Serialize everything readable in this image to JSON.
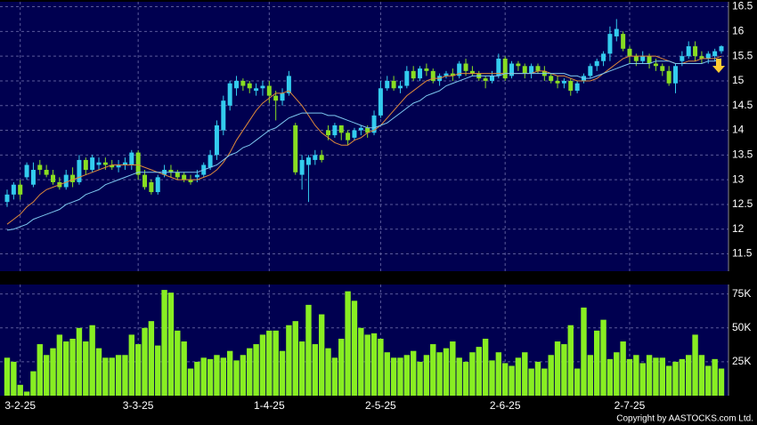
{
  "chart_data": [
    {
      "type": "candlestick",
      "categories": [
        null,
        null,
        "3-2-25",
        null,
        null,
        null,
        null,
        null,
        null,
        null,
        null,
        null,
        null,
        null,
        null,
        null,
        null,
        null,
        null,
        null,
        "3-3-25",
        null,
        null,
        null,
        null,
        null,
        null,
        null,
        null,
        null,
        null,
        null,
        null,
        null,
        null,
        null,
        null,
        null,
        null,
        null,
        "1-4-25",
        null,
        null,
        null,
        null,
        null,
        null,
        null,
        null,
        null,
        null,
        null,
        null,
        null,
        null,
        null,
        null,
        "2-5-25",
        null,
        null,
        null,
        null,
        null,
        null,
        null,
        null,
        null,
        null,
        null,
        null,
        null,
        null,
        null,
        null,
        null,
        null,
        "2-6-25",
        null,
        null,
        null,
        null,
        null,
        null,
        null,
        null,
        null,
        null,
        null,
        null,
        null,
        null,
        null,
        null,
        null,
        null,
        "2-7-25",
        null,
        null,
        null,
        null,
        null,
        null,
        null,
        null,
        null,
        null,
        null,
        null,
        null,
        null
      ],
      "open": [
        12.55,
        12.7,
        12.9,
        13.05,
        12.9,
        13.3,
        13.2,
        13.1,
        12.95,
        12.85,
        13.1,
        12.95,
        13.4,
        13.2,
        13.3,
        13.35,
        13.3,
        13.25,
        13.3,
        13.3,
        13.55,
        13.1,
        12.95,
        12.75,
        13.1,
        13.2,
        13.15,
        13.1,
        13.0,
        13.05,
        13.1,
        13.25,
        13.5,
        14.0,
        14.5,
        14.85,
        15.0,
        14.95,
        14.8,
        14.85,
        14.9,
        14.7,
        14.6,
        14.75,
        14.1,
        13.1,
        13.3,
        13.4,
        13.5,
        14.0,
        13.9,
        14.1,
        13.95,
        13.85,
        14.0,
        14.05,
        13.95,
        14.3,
        14.85,
        15.0,
        14.85,
        14.9,
        15.2,
        15.05,
        15.25,
        15.2,
        15.0,
        15.1,
        15.15,
        15.1,
        15.35,
        15.2,
        15.15,
        15.05,
        15.0,
        15.1,
        15.45,
        15.1,
        15.35,
        15.3,
        15.15,
        15.3,
        15.2,
        15.1,
        15.0,
        14.95,
        15.0,
        14.8,
        15.0,
        15.1,
        15.3,
        15.4,
        15.55,
        15.9,
        15.95,
        15.65,
        15.5,
        15.4,
        15.5,
        15.35,
        15.3,
        15.2,
        14.95,
        15.4,
        15.5,
        15.7,
        15.5,
        15.45,
        15.5,
        15.6
      ],
      "high": [
        12.8,
        12.95,
        13.0,
        13.35,
        13.35,
        13.4,
        13.3,
        13.2,
        13.05,
        13.2,
        13.25,
        13.5,
        13.45,
        13.5,
        13.45,
        13.45,
        13.4,
        13.4,
        13.45,
        13.6,
        13.6,
        13.2,
        13.0,
        13.1,
        13.3,
        13.3,
        13.2,
        13.15,
        13.1,
        13.2,
        13.35,
        13.6,
        14.2,
        14.7,
        15.0,
        15.1,
        15.05,
        15.0,
        14.95,
        15.0,
        15.0,
        14.8,
        14.85,
        15.2,
        14.15,
        13.5,
        13.5,
        13.6,
        13.6,
        14.1,
        14.15,
        14.1,
        14.0,
        14.05,
        14.1,
        14.1,
        14.4,
        15.0,
        15.1,
        15.1,
        15.0,
        15.3,
        15.3,
        15.3,
        15.35,
        15.25,
        15.15,
        15.2,
        15.25,
        15.4,
        15.45,
        15.3,
        15.2,
        15.1,
        15.2,
        15.55,
        15.5,
        15.4,
        15.4,
        15.35,
        15.35,
        15.35,
        15.3,
        15.15,
        15.1,
        15.05,
        15.05,
        15.0,
        15.15,
        15.35,
        15.45,
        15.6,
        16.1,
        16.25,
        16.0,
        15.7,
        15.55,
        15.6,
        15.55,
        15.45,
        15.35,
        15.3,
        15.35,
        15.6,
        15.8,
        15.8,
        15.6,
        15.6,
        15.65,
        15.72
      ],
      "low": [
        12.45,
        12.6,
        12.6,
        13.0,
        12.85,
        13.1,
        13.05,
        12.9,
        12.8,
        12.8,
        12.85,
        12.9,
        13.1,
        13.15,
        13.2,
        13.2,
        13.2,
        13.15,
        13.2,
        13.2,
        13.0,
        12.8,
        12.7,
        12.7,
        13.05,
        13.05,
        13.0,
        12.95,
        12.9,
        12.95,
        13.05,
        13.2,
        13.4,
        13.9,
        14.4,
        14.7,
        14.8,
        14.75,
        14.7,
        14.7,
        14.55,
        14.2,
        14.5,
        14.7,
        13.1,
        12.8,
        12.55,
        13.3,
        13.35,
        13.8,
        13.85,
        13.8,
        13.7,
        13.8,
        13.9,
        13.85,
        13.9,
        14.25,
        14.8,
        14.8,
        14.75,
        14.85,
        15.0,
        15.0,
        15.1,
        14.95,
        14.9,
        15.05,
        15.0,
        15.05,
        15.1,
        15.1,
        15.0,
        14.85,
        14.95,
        15.05,
        15.0,
        15.05,
        15.2,
        15.05,
        15.05,
        15.15,
        15.0,
        14.95,
        14.85,
        14.85,
        14.7,
        14.75,
        14.95,
        15.05,
        15.2,
        15.3,
        15.4,
        15.8,
        15.6,
        15.35,
        15.3,
        15.35,
        15.25,
        15.2,
        15.1,
        14.9,
        14.75,
        15.3,
        15.45,
        15.4,
        15.35,
        15.35,
        15.4,
        15.55
      ],
      "close": [
        12.7,
        12.9,
        12.7,
        13.3,
        13.2,
        13.2,
        13.1,
        12.95,
        12.85,
        13.1,
        12.95,
        13.4,
        13.2,
        13.45,
        13.35,
        13.3,
        13.25,
        13.3,
        13.35,
        13.55,
        13.1,
        12.85,
        12.75,
        13.05,
        13.2,
        13.15,
        13.05,
        13.0,
        12.95,
        13.1,
        13.3,
        13.5,
        14.1,
        14.6,
        14.95,
        15.0,
        14.9,
        14.85,
        14.85,
        14.9,
        14.7,
        14.6,
        14.75,
        15.1,
        13.15,
        13.4,
        13.45,
        13.5,
        13.4,
        13.9,
        14.1,
        13.95,
        13.8,
        14.0,
        14.05,
        13.95,
        14.3,
        14.85,
        15.0,
        14.85,
        14.9,
        15.2,
        15.05,
        15.25,
        15.2,
        15.0,
        15.1,
        15.15,
        15.1,
        15.35,
        15.2,
        15.15,
        15.05,
        15.0,
        15.1,
        15.45,
        15.05,
        15.35,
        15.3,
        15.15,
        15.3,
        15.2,
        15.1,
        15.0,
        14.95,
        15.0,
        14.8,
        14.95,
        15.1,
        15.3,
        15.4,
        15.55,
        15.95,
        16.05,
        15.65,
        15.5,
        15.4,
        15.5,
        15.35,
        15.3,
        15.2,
        14.95,
        15.3,
        15.5,
        15.7,
        15.5,
        15.45,
        15.55,
        15.6,
        15.7
      ],
      "up_color": "#33ccee",
      "down_color": "#88dd22",
      "series": [
        {
          "color": "#e08a3a",
          "values": [
            12.1,
            12.2,
            12.3,
            12.45,
            12.55,
            12.7,
            12.8,
            12.85,
            12.9,
            12.95,
            13.0,
            13.05,
            13.1,
            13.15,
            13.2,
            13.25,
            13.3,
            13.3,
            13.3,
            13.3,
            13.3,
            13.25,
            13.2,
            13.15,
            13.1,
            13.05,
            13.0,
            13.0,
            13.0,
            13.0,
            13.05,
            13.1,
            13.2,
            13.35,
            13.55,
            13.8,
            14.0,
            14.2,
            14.4,
            14.55,
            14.65,
            14.75,
            14.75,
            14.8,
            14.65,
            14.5,
            14.3,
            14.1,
            13.95,
            13.85,
            13.75,
            13.7,
            13.7,
            13.8,
            13.85,
            13.95,
            14.0,
            14.1,
            14.25,
            14.4,
            14.55,
            14.7,
            14.8,
            14.9,
            15.0,
            15.05,
            15.05,
            15.1,
            15.1,
            15.15,
            15.15,
            15.15,
            15.15,
            15.15,
            15.15,
            15.15,
            15.15,
            15.15,
            15.15,
            15.15,
            15.15,
            15.2,
            15.2,
            15.15,
            15.1,
            15.1,
            15.05,
            15.0,
            15.0,
            15.0,
            15.05,
            15.15,
            15.25,
            15.35,
            15.45,
            15.5,
            15.5,
            15.5,
            15.5,
            15.5,
            15.45,
            15.4,
            15.35,
            15.35,
            15.4,
            15.4,
            15.45,
            15.45,
            15.45,
            15.5
          ]
        },
        {
          "color": "#7ec8f0",
          "values": [
            11.98,
            12.0,
            12.05,
            12.1,
            12.2,
            12.25,
            12.3,
            12.35,
            12.4,
            12.5,
            12.55,
            12.6,
            12.7,
            12.75,
            12.8,
            12.9,
            12.95,
            13.0,
            13.05,
            13.1,
            13.15,
            13.15,
            13.15,
            13.15,
            13.15,
            13.15,
            13.15,
            13.15,
            13.15,
            13.15,
            13.2,
            13.25,
            13.3,
            13.4,
            13.5,
            13.55,
            13.65,
            13.7,
            13.8,
            13.9,
            14.0,
            14.05,
            14.15,
            14.25,
            14.3,
            14.35,
            14.35,
            14.35,
            14.35,
            14.3,
            14.3,
            14.25,
            14.2,
            14.15,
            14.1,
            14.05,
            14.05,
            14.1,
            14.15,
            14.25,
            14.35,
            14.45,
            14.55,
            14.6,
            14.7,
            14.75,
            14.8,
            14.9,
            14.95,
            15.0,
            15.05,
            15.1,
            15.1,
            15.1,
            15.1,
            15.1,
            15.15,
            15.15,
            15.15,
            15.15,
            15.15,
            15.15,
            15.15,
            15.15,
            15.15,
            15.15,
            15.1,
            15.1,
            15.05,
            15.05,
            15.1,
            15.15,
            15.2,
            15.25,
            15.3,
            15.35,
            15.35,
            15.35,
            15.35,
            15.4,
            15.4,
            15.4,
            15.35,
            15.35,
            15.35,
            15.35,
            15.35,
            15.4,
            15.4,
            15.45
          ]
        }
      ],
      "ylim": [
        11.15,
        16.6
      ],
      "yticks": [
        11.5,
        12,
        12.5,
        13,
        13.5,
        14,
        14.5,
        15,
        15.5,
        16,
        16.5
      ],
      "grid": true
    },
    {
      "type": "bar",
      "values": [
        28000,
        25000,
        8000,
        3000,
        18000,
        38000,
        30000,
        35000,
        45000,
        40000,
        42000,
        50000,
        40000,
        52000,
        35000,
        28000,
        28000,
        30000,
        30000,
        45000,
        38000,
        50000,
        55000,
        37000,
        78000,
        76000,
        48000,
        40000,
        20000,
        25000,
        28000,
        27000,
        30000,
        28000,
        33000,
        26000,
        30000,
        35000,
        38000,
        45000,
        48000,
        48000,
        33000,
        52000,
        55000,
        40000,
        67000,
        38000,
        60000,
        35000,
        28000,
        42000,
        77000,
        70000,
        50000,
        45000,
        46000,
        42000,
        32000,
        28000,
        28000,
        30000,
        33000,
        25000,
        30000,
        38000,
        32000,
        35000,
        40000,
        28000,
        25000,
        32000,
        36000,
        42000,
        26000,
        32000,
        24000,
        22000,
        28000,
        32000,
        20000,
        25000,
        20000,
        30000,
        40000,
        38000,
        52000,
        20000,
        65000,
        30000,
        48000,
        56000,
        27000,
        32000,
        40000,
        27000,
        30000,
        24000,
        30000,
        28000,
        28000,
        22000,
        25000,
        27000,
        30000,
        45000,
        30000,
        22000,
        27000,
        20000
      ],
      "color": "#88ee22",
      "ylim": [
        0,
        82000
      ],
      "yticks": [
        {
          "value": 25000,
          "label": "25K"
        },
        {
          "value": 50000,
          "label": "50K"
        },
        {
          "value": 75000,
          "label": "75K"
        }
      ],
      "grid": true
    }
  ],
  "copyright": "Copyright by AASTOCKS.com Ltd."
}
